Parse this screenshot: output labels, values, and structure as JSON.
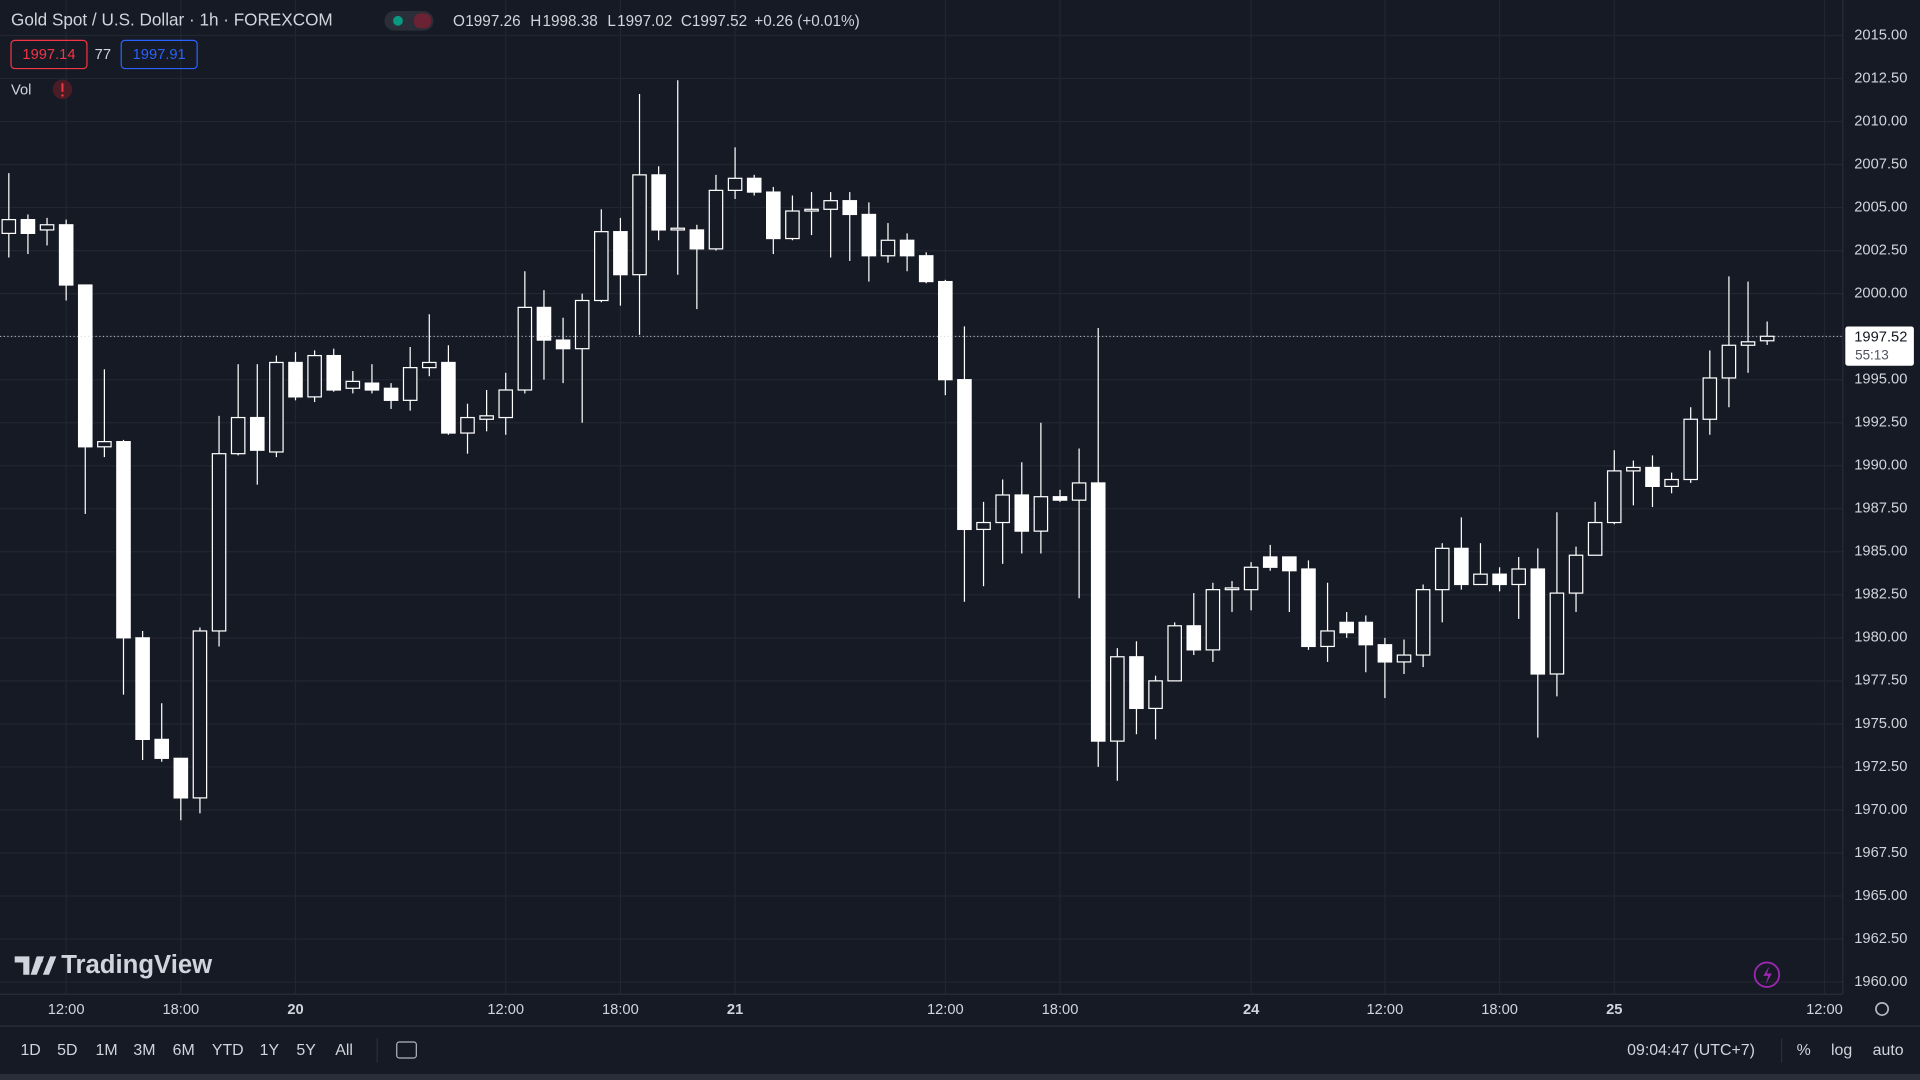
{
  "chart_data": {
    "type": "candlestick",
    "title": "Gold Spot / U.S. Dollar · 1h · FOREXCOM",
    "legend_labels": [
      "O",
      "H",
      "L",
      "C"
    ],
    "change_label": "+0.26 (+0.01%)",
    "countdown": "55:13",
    "color": "#ffffff",
    "grid": true,
    "categories": [
      null,
      null,
      null,
      "12:00",
      null,
      null,
      null,
      null,
      null,
      "18:00",
      null,
      null,
      null,
      null,
      null,
      "20",
      null,
      null,
      null,
      null,
      null,
      null,
      null,
      null,
      null,
      null,
      "12:00",
      null,
      null,
      null,
      null,
      null,
      "18:00",
      null,
      null,
      null,
      null,
      null,
      "21",
      null,
      null,
      null,
      null,
      null,
      null,
      null,
      null,
      null,
      null,
      "12:00",
      null,
      null,
      null,
      null,
      null,
      "18:00",
      null,
      null,
      null,
      null,
      null,
      null,
      null,
      null,
      null,
      "24",
      null,
      null,
      null,
      null,
      null,
      null,
      "12:00",
      null,
      null,
      null,
      null,
      null,
      "18:00",
      null,
      null,
      null,
      null,
      null,
      "25",
      null,
      null,
      null,
      null,
      null,
      null,
      null,
      null,
      null,
      null,
      "12:00"
    ],
    "open": [
      2003.5,
      2004.3,
      2003.7,
      2004.0,
      2000.5,
      1991.1,
      1991.4,
      1980.0,
      1974.1,
      1973.0,
      1970.7,
      1980.4,
      1990.7,
      1992.8,
      1990.8,
      1996.0,
      1994.0,
      1996.4,
      1994.5,
      1994.8,
      1994.5,
      1993.8,
      1995.7,
      1996.0,
      1991.9,
      1992.7,
      1992.8,
      1994.4,
      1999.2,
      1997.3,
      1996.8,
      1999.6,
      2003.6,
      2001.1,
      2006.9,
      2003.7,
      2003.7,
      2002.6,
      2006.0,
      2006.7,
      2005.9,
      2003.2,
      2004.8,
      2004.9,
      2005.4,
      2004.6,
      2002.2,
      2003.1,
      2002.2,
      2000.7,
      1995.0,
      1986.3,
      1986.7,
      1988.3,
      1986.2,
      1988.2,
      1988.0,
      1989.0,
      1974.0,
      1978.9,
      1975.9,
      1977.5,
      1980.7,
      1979.3,
      1982.8,
      1982.8,
      1984.7,
      1984.7,
      1984.0,
      1979.5,
      1980.9,
      1980.9,
      1979.6,
      1978.6,
      1979.0,
      1982.8,
      1985.2,
      1983.1,
      1983.7,
      1983.1,
      1984.0,
      1977.9,
      1982.6,
      1984.8,
      1986.7,
      1989.7,
      1989.9,
      1988.8,
      1989.2,
      1992.7,
      1995.1,
      1997.0,
      1997.26,
      null,
      null,
      null
    ],
    "high": [
      2007.0,
      2004.6,
      2004.4,
      2004.3,
      2000.5,
      1995.6,
      1991.5,
      1980.4,
      1976.2,
      1973.0,
      1980.6,
      1992.9,
      1995.9,
      1995.9,
      1996.4,
      1996.6,
      1996.7,
      1996.8,
      1995.5,
      1995.9,
      1994.8,
      1996.9,
      1998.8,
      1997.0,
      1993.6,
      1994.4,
      1995.4,
      2001.3,
      2000.2,
      1998.6,
      2000.0,
      2004.9,
      2004.4,
      2011.6,
      2007.4,
      2012.4,
      2004.0,
      2006.9,
      2008.5,
      2006.9,
      2006.2,
      2005.7,
      2005.9,
      2005.9,
      2005.9,
      2005.3,
      2004.1,
      2003.5,
      2002.4,
      2000.8,
      1998.1,
      1987.9,
      1989.2,
      1990.2,
      1992.5,
      1988.6,
      1991.0,
      1998.0,
      1979.4,
      1979.8,
      1977.8,
      1980.9,
      1982.6,
      1983.2,
      1983.3,
      1984.4,
      1985.4,
      1984.7,
      1984.5,
      1983.2,
      1981.5,
      1981.3,
      1980.0,
      1979.9,
      1983.1,
      1985.5,
      1987.0,
      1985.5,
      1984.1,
      1984.7,
      1985.2,
      1987.3,
      1985.3,
      1987.9,
      1990.9,
      1990.3,
      1990.6,
      1989.6,
      1993.4,
      1996.7,
      2001.0,
      2000.7,
      1998.38,
      null,
      null,
      null
    ],
    "low": [
      2002.1,
      2002.3,
      2002.8,
      1999.6,
      1987.2,
      1990.5,
      1976.7,
      1972.9,
      1972.8,
      1969.4,
      1969.8,
      1979.5,
      1990.6,
      1988.9,
      1990.5,
      1993.8,
      1993.7,
      1994.3,
      1994.2,
      1994.2,
      1993.3,
      1993.2,
      1995.2,
      1991.8,
      1990.7,
      1992.0,
      1991.8,
      1994.2,
      1995.0,
      1994.8,
      1992.5,
      1999.5,
      1999.3,
      1997.6,
      2003.1,
      2001.1,
      1999.1,
      2002.5,
      2005.5,
      2005.7,
      2002.3,
      2003.1,
      2003.4,
      2002.1,
      2001.9,
      2000.7,
      2001.8,
      2001.3,
      2000.6,
      1994.1,
      1982.1,
      1983.0,
      1984.3,
      1984.9,
      1984.9,
      1987.9,
      1982.3,
      1972.5,
      1971.7,
      1974.4,
      1974.1,
      1977.5,
      1979.0,
      1978.6,
      1981.5,
      1981.6,
      1983.9,
      1981.5,
      1979.3,
      1978.6,
      1980.0,
      1978.0,
      1976.5,
      1977.9,
      1978.3,
      1980.9,
      1982.8,
      1983.1,
      1982.7,
      1981.1,
      1974.2,
      1976.6,
      1981.5,
      1984.8,
      1986.6,
      1987.7,
      1987.6,
      1988.4,
      1989.0,
      1991.8,
      1993.4,
      1995.4,
      1997.02,
      null,
      null,
      null
    ],
    "close": [
      2004.3,
      2003.5,
      2004.0,
      2000.5,
      1991.1,
      1991.4,
      1980.0,
      1974.1,
      1973.0,
      1970.7,
      1980.4,
      1990.7,
      1992.8,
      1990.9,
      1996.0,
      1994.0,
      1996.4,
      1994.4,
      1994.9,
      1994.4,
      1993.8,
      1995.7,
      1996.0,
      1991.9,
      1992.8,
      1992.9,
      1994.4,
      1999.2,
      1997.3,
      1996.8,
      1999.6,
      2003.6,
      2001.1,
      2006.9,
      2003.7,
      2003.8,
      2002.6,
      2006.0,
      2006.7,
      2005.9,
      2003.2,
      2004.8,
      2004.9,
      2005.4,
      2004.6,
      2002.2,
      2003.1,
      2002.2,
      2000.7,
      1995.0,
      1986.3,
      1986.7,
      1988.3,
      1986.2,
      1988.2,
      1988.0,
      1989.0,
      1974.0,
      1978.9,
      1975.9,
      1977.5,
      1980.7,
      1979.3,
      1982.8,
      1982.9,
      1984.1,
      1984.1,
      1983.9,
      1979.5,
      1980.4,
      1980.3,
      1979.6,
      1978.6,
      1979.0,
      1982.8,
      1985.2,
      1983.1,
      1983.7,
      1983.1,
      1984.0,
      1977.9,
      1982.6,
      1984.8,
      1986.7,
      1989.7,
      1989.9,
      1988.8,
      1989.2,
      1992.7,
      1995.1,
      1997.0,
      1997.2,
      1997.52,
      null,
      null,
      null
    ],
    "ylim": [
      1959.29,
      2017.06
    ],
    "yticks": [
      {
        "value": 2015,
        "label": "2015.00"
      },
      {
        "value": 2012.5,
        "label": "2012.50"
      },
      {
        "value": 2010,
        "label": "2010.00"
      },
      {
        "value": 2007.5,
        "label": "2007.50"
      },
      {
        "value": 2005,
        "label": "2005.00"
      },
      {
        "value": 2002.5,
        "label": "2002.50"
      },
      {
        "value": 2000,
        "label": "2000.00"
      },
      {
        "value": 1997.5,
        "label": "1997.50"
      },
      {
        "value": 1995,
        "label": "1995.00"
      },
      {
        "value": 1992.5,
        "label": "1992.50"
      },
      {
        "value": 1990,
        "label": "1990.00"
      },
      {
        "value": 1987.5,
        "label": "1987.50"
      },
      {
        "value": 1985,
        "label": "1985.00"
      },
      {
        "value": 1982.5,
        "label": "1982.50"
      },
      {
        "value": 1980,
        "label": "1980.00"
      },
      {
        "value": 1977.5,
        "label": "1977.50"
      },
      {
        "value": 1975,
        "label": "1975.00"
      },
      {
        "value": 1972.5,
        "label": "1972.50"
      },
      {
        "value": 1970,
        "label": "1970.00"
      },
      {
        "value": 1967.5,
        "label": "1967.50"
      },
      {
        "value": 1965,
        "label": "1965.00"
      },
      {
        "value": 1962.5,
        "label": "1962.50"
      },
      {
        "value": 1960,
        "label": "1960.00"
      }
    ]
  },
  "quote": {
    "bid": 1997.14,
    "spread": 77,
    "ask": 1997.91
  },
  "indicator": "Vol",
  "logo": "TradingView",
  "toolbar": {
    "ranges": [
      "1D",
      "5D",
      "1M",
      "3M",
      "6M",
      "YTD",
      "1Y",
      "5Y",
      "All"
    ],
    "clock": "09:04:47 (UTC+7)",
    "options": [
      "%",
      "log",
      "auto"
    ]
  }
}
